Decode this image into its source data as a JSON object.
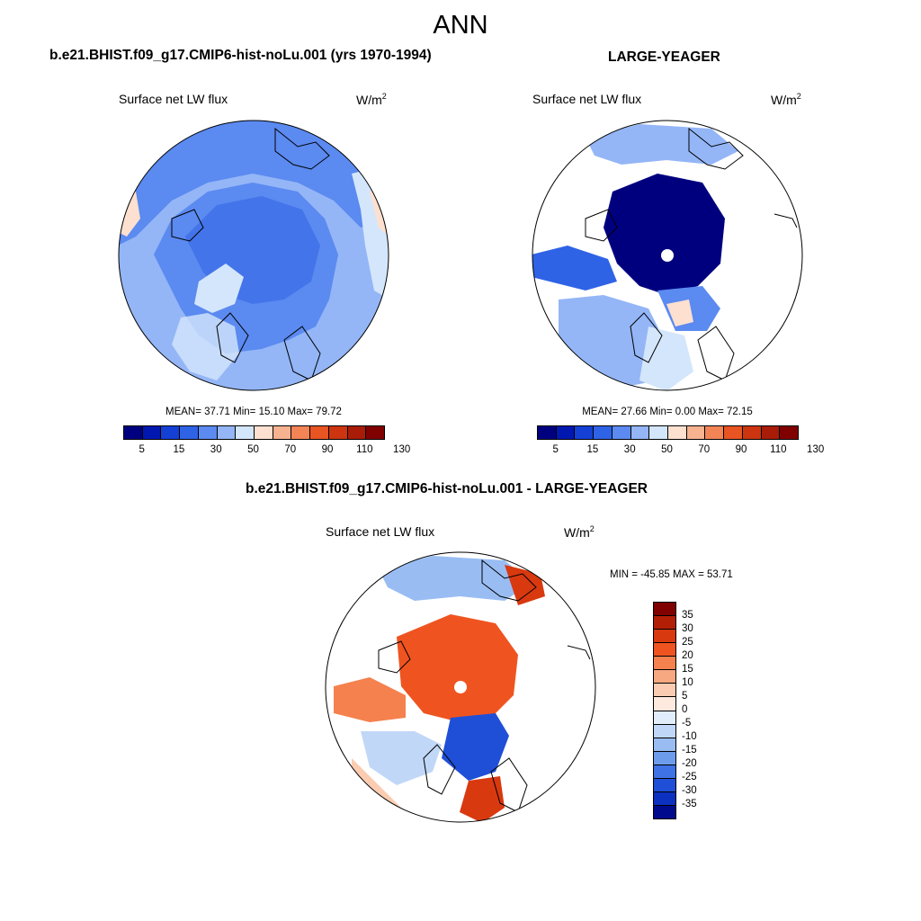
{
  "title": "ANN",
  "panels": [
    {
      "title": "b.e21.BHIST.f09_g17.CMIP6-hist-noLu.001 (yrs 1970-1994)",
      "variable": "Surface net LW flux",
      "units_base": "W/m",
      "units_exp": "2",
      "stats": "MEAN=  37.71  Min=  15.10  Max=  79.72",
      "colorbar_labels": [
        "5",
        "15",
        "30",
        "50",
        "70",
        "90",
        "110",
        "130"
      ]
    },
    {
      "title": "LARGE-YEAGER",
      "variable": "Surface net LW flux",
      "units_base": "W/m",
      "units_exp": "2",
      "stats": "MEAN=  27.66  Min=   0.00  Max=  72.15",
      "colorbar_labels": [
        "5",
        "15",
        "30",
        "50",
        "70",
        "90",
        "110",
        "130"
      ]
    },
    {
      "title": "b.e21.BHIST.f09_g17.CMIP6-hist-noLu.001 - LARGE-YEAGER",
      "variable": "Surface net LW flux",
      "units_base": "W/m",
      "units_exp": "2",
      "stats": "MIN = -45.85 MAX =  53.71",
      "colorbar_labels": [
        "35",
        "30",
        "25",
        "20",
        "15",
        "10",
        "5",
        "0",
        "-5",
        "-10",
        "-15",
        "-20",
        "-25",
        "-30",
        "-35"
      ]
    }
  ],
  "colors": {
    "abs_scale": [
      "#00007f",
      "#0018b0",
      "#1440d6",
      "#2f63e6",
      "#5b8af0",
      "#94b6f7",
      "#d4e6fb",
      "#fde0cf",
      "#f7b290",
      "#f28456",
      "#e85422",
      "#cc3510",
      "#a91c08",
      "#800000"
    ],
    "diff_scale": [
      "#800000",
      "#b31e06",
      "#d8390f",
      "#ef5420",
      "#f5814e",
      "#f8a881",
      "#fbccb1",
      "#fde9de",
      "#e2edfb",
      "#c1d7f7",
      "#99bdf3",
      "#6e9ced",
      "#3f72e4",
      "#1f4fd7",
      "#0c30c0",
      "#000a8c"
    ]
  },
  "chart_data": [
    {
      "type": "heatmap",
      "title": "b.e21.BHIST.f09_g17.CMIP6-hist-noLu.001 (yrs 1970-1994)",
      "variable": "Surface net LW flux",
      "units": "W/m2",
      "projection": "north polar stereographic",
      "mean": 37.71,
      "min": 15.1,
      "max": 79.72,
      "levels": [
        5,
        10,
        15,
        20,
        30,
        40,
        50,
        60,
        70,
        80,
        90,
        100,
        110,
        120,
        130
      ]
    },
    {
      "type": "heatmap",
      "title": "LARGE-YEAGER",
      "variable": "Surface net LW flux",
      "units": "W/m2",
      "projection": "north polar stereographic",
      "mean": 27.66,
      "min": 0.0,
      "max": 72.15,
      "levels": [
        5,
        10,
        15,
        20,
        30,
        40,
        50,
        60,
        70,
        80,
        90,
        100,
        110,
        120,
        130
      ]
    },
    {
      "type": "heatmap",
      "title": "b.e21.BHIST.f09_g17.CMIP6-hist-noLu.001 - LARGE-YEAGER",
      "variable": "Surface net LW flux",
      "units": "W/m2",
      "projection": "north polar stereographic",
      "min": -45.85,
      "max": 53.71,
      "levels": [
        35,
        30,
        25,
        20,
        15,
        10,
        5,
        0,
        -5,
        -10,
        -15,
        -20,
        -25,
        -30,
        -35
      ]
    }
  ]
}
